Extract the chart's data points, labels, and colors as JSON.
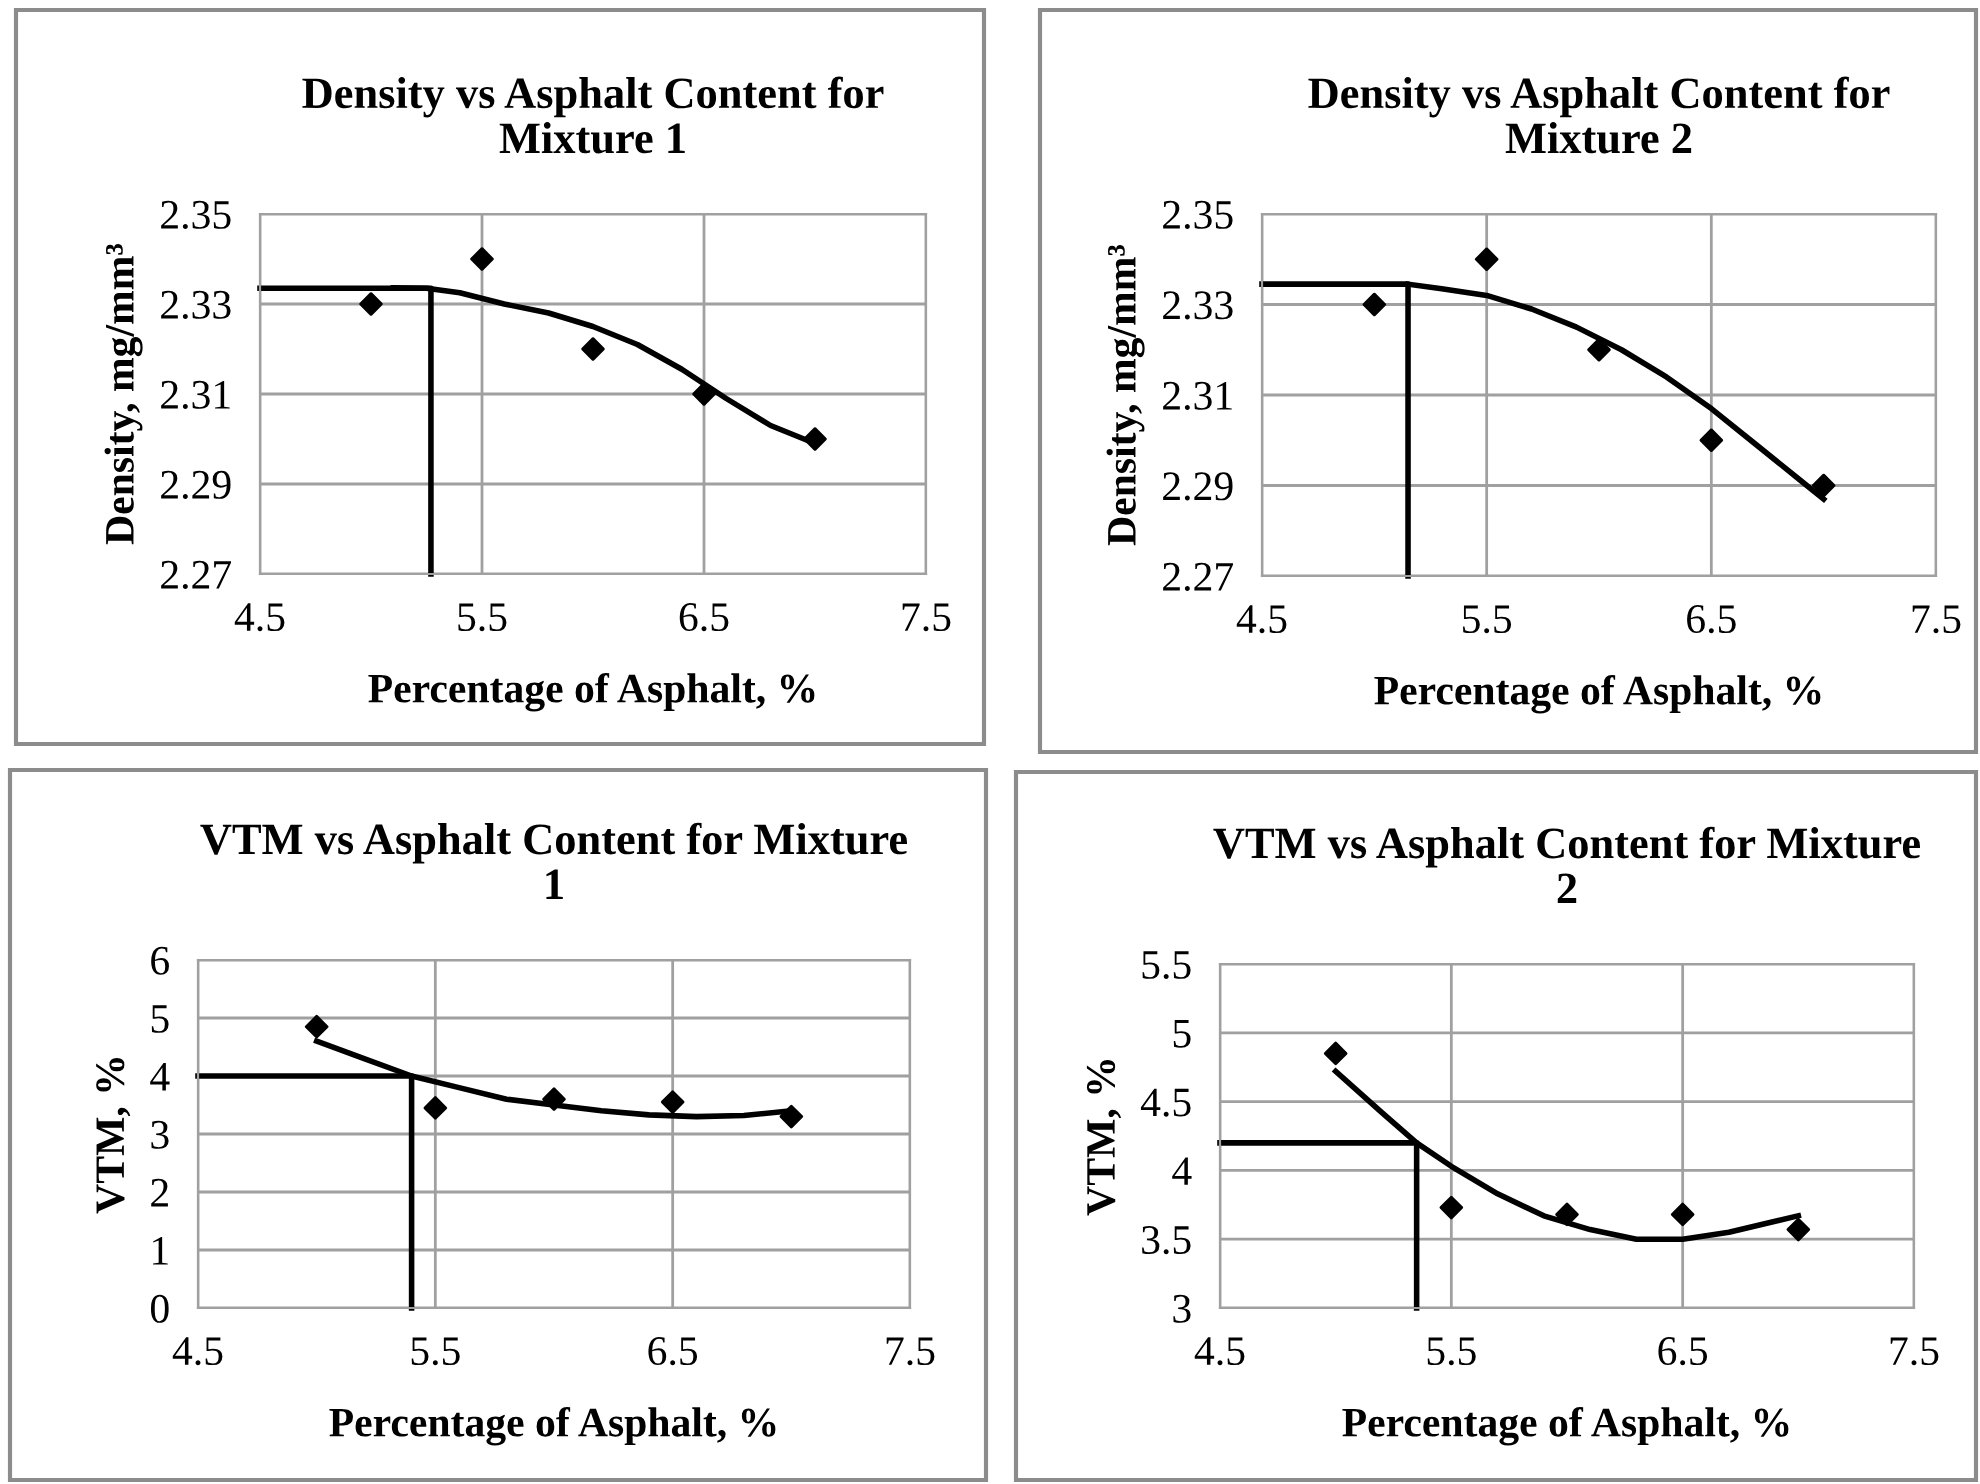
{
  "chart_data": [
    {
      "type": "scatter",
      "title": "Density vs Asphalt Content for Mixture 1",
      "xlabel": "Percentage of Asphalt, %",
      "ylabel": "Density, mg/mm³",
      "xlim": [
        4.5,
        7.5
      ],
      "xticks": [
        4.5,
        5.5,
        6.5,
        7.5
      ],
      "ylim": [
        2.27,
        2.35
      ],
      "yticks": [
        2.27,
        2.29,
        2.31,
        2.33,
        2.35
      ],
      "grid": true,
      "marker": "diamond",
      "series": [
        {
          "type": "scatter",
          "color": "#000000",
          "x": [
            5,
            5.5,
            6,
            6.5,
            7
          ],
          "values": [
            2.33,
            2.34,
            2.32,
            2.31,
            2.3
          ]
        },
        {
          "type": "line",
          "color": "#000000",
          "marker": "none",
          "x": [
            5.1,
            5.25,
            5.4,
            5.6,
            5.8,
            6.0,
            6.2,
            6.4,
            6.6,
            6.8,
            7.0
          ],
          "values": [
            2.3336,
            2.3335,
            2.3325,
            2.33,
            2.328,
            2.325,
            2.321,
            2.3155,
            2.309,
            2.303,
            2.299
          ]
        },
        {
          "type": "line",
          "color": "#000000",
          "marker": "none",
          "x": [
            4.5,
            5.27,
            5.27
          ],
          "values": [
            2.3335,
            2.3335,
            2.27
          ]
        }
      ]
    },
    {
      "type": "scatter",
      "title": "Density vs Asphalt Content for Mixture 2",
      "xlabel": "Percentage of Asphalt, %",
      "ylabel": "Density, mg/mm³",
      "xlim": [
        4.5,
        7.5
      ],
      "xticks": [
        4.5,
        5.5,
        6.5,
        7.5
      ],
      "ylim": [
        2.27,
        2.35
      ],
      "yticks": [
        2.27,
        2.29,
        2.31,
        2.33,
        2.35
      ],
      "grid": true,
      "marker": "diamond",
      "series": [
        {
          "type": "scatter",
          "color": "#000000",
          "x": [
            5,
            5.5,
            6,
            6.5,
            7
          ],
          "values": [
            2.33,
            2.34,
            2.32,
            2.3,
            2.29
          ]
        },
        {
          "type": "line",
          "color": "#000000",
          "marker": "none",
          "x": [
            5.15,
            5.3,
            5.5,
            5.7,
            5.9,
            6.1,
            6.3,
            6.5,
            6.7,
            6.9,
            7.0
          ],
          "values": [
            2.3345,
            2.3335,
            2.332,
            2.329,
            2.325,
            2.32,
            2.314,
            2.307,
            2.299,
            2.291,
            2.287
          ]
        },
        {
          "type": "line",
          "color": "#000000",
          "marker": "none",
          "x": [
            4.5,
            5.15,
            5.15
          ],
          "values": [
            2.3345,
            2.3345,
            2.27
          ]
        }
      ]
    },
    {
      "type": "scatter",
      "title": "VTM vs Asphalt Content for Mixture 1",
      "xlabel": "Percentage of Asphalt, %",
      "ylabel": "VTM, %",
      "xlim": [
        4.5,
        7.5
      ],
      "xticks": [
        4.5,
        5.5,
        6.5,
        7.5
      ],
      "ylim": [
        0,
        6
      ],
      "yticks": [
        0,
        1,
        2,
        3,
        4,
        5,
        6
      ],
      "grid": true,
      "marker": "diamond",
      "series": [
        {
          "type": "scatter",
          "color": "#000000",
          "x": [
            5,
            5.5,
            6,
            6.5,
            7
          ],
          "values": [
            4.85,
            3.45,
            3.6,
            3.55,
            3.3
          ]
        },
        {
          "type": "line",
          "color": "#000000",
          "marker": "none",
          "x": [
            5.0,
            5.2,
            5.4,
            5.6,
            5.8,
            6.0,
            6.2,
            6.4,
            6.6,
            6.8,
            7.0
          ],
          "values": [
            4.6,
            4.3,
            4.0,
            3.8,
            3.6,
            3.5,
            3.4,
            3.33,
            3.3,
            3.32,
            3.4
          ]
        },
        {
          "type": "line",
          "color": "#000000",
          "marker": "none",
          "x": [
            4.5,
            5.4,
            5.4
          ],
          "values": [
            4.0,
            4.0,
            0
          ]
        }
      ]
    },
    {
      "type": "scatter",
      "title": "VTM vs Asphalt Content for Mixture 2",
      "xlabel": "Percentage of Asphalt, %",
      "ylabel": "VTM, %",
      "xlim": [
        4.5,
        7.5
      ],
      "xticks": [
        4.5,
        5.5,
        6.5,
        7.5
      ],
      "ylim": [
        3,
        5.5
      ],
      "yticks": [
        3,
        3.5,
        4,
        4.5,
        5,
        5.5
      ],
      "grid": true,
      "marker": "diamond",
      "series": [
        {
          "type": "scatter",
          "color": "#000000",
          "x": [
            5,
            5.5,
            6,
            6.5,
            7
          ],
          "values": [
            4.85,
            3.73,
            3.68,
            3.68,
            3.57
          ]
        },
        {
          "type": "line",
          "color": "#000000",
          "marker": "none",
          "x": [
            5.0,
            5.2,
            5.35,
            5.5,
            5.7,
            5.9,
            6.1,
            6.3,
            6.5,
            6.7,
            6.9,
            7.0
          ],
          "values": [
            4.72,
            4.42,
            4.2,
            4.03,
            3.83,
            3.67,
            3.57,
            3.5,
            3.5,
            3.55,
            3.63,
            3.67
          ]
        },
        {
          "type": "line",
          "color": "#000000",
          "marker": "none",
          "x": [
            4.5,
            5.35,
            5.35
          ],
          "values": [
            4.2,
            4.2,
            3
          ]
        }
      ]
    }
  ]
}
